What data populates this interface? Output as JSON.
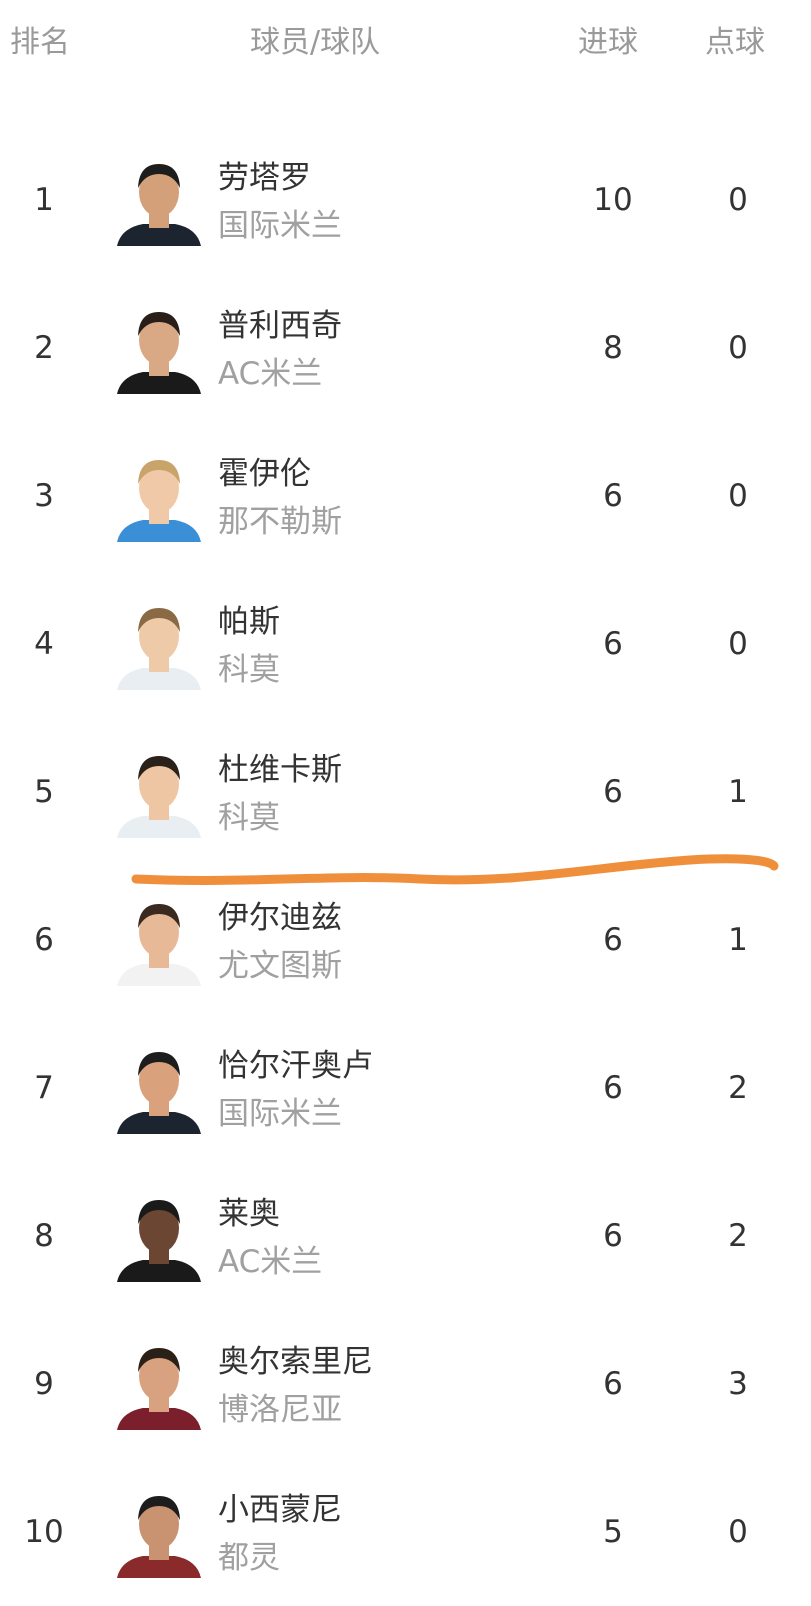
{
  "header": {
    "rank": "排名",
    "player_team": "球员/球队",
    "goals": "进球",
    "penalties": "点球"
  },
  "rows": [
    {
      "rank": "1",
      "name": "劳塔罗",
      "team": "国际米兰",
      "goals": "10",
      "penalties": "0"
    },
    {
      "rank": "2",
      "name": "普利西奇",
      "team": "AC米兰",
      "goals": "8",
      "penalties": "0"
    },
    {
      "rank": "3",
      "name": "霍伊伦",
      "team": "那不勒斯",
      "goals": "6",
      "penalties": "0"
    },
    {
      "rank": "4",
      "name": "帕斯",
      "team": "科莫",
      "goals": "6",
      "penalties": "0"
    },
    {
      "rank": "5",
      "name": "杜维卡斯",
      "team": "科莫",
      "goals": "6",
      "penalties": "1"
    },
    {
      "rank": "6",
      "name": "伊尔迪兹",
      "team": "尤文图斯",
      "goals": "6",
      "penalties": "1"
    },
    {
      "rank": "7",
      "name": "恰尔汗奥卢",
      "team": "国际米兰",
      "goals": "6",
      "penalties": "2"
    },
    {
      "rank": "8",
      "name": "莱奥",
      "team": "AC米兰",
      "goals": "6",
      "penalties": "2"
    },
    {
      "rank": "9",
      "name": "奥尔索里尼",
      "team": "博洛尼亚",
      "goals": "6",
      "penalties": "3"
    },
    {
      "rank": "10",
      "name": "小西蒙尼",
      "team": "都灵",
      "goals": "5",
      "penalties": "0"
    }
  ],
  "annotation": {
    "color": "#ef8f3c"
  },
  "colors": {
    "text": "#333333",
    "muted": "#a0a0a0"
  }
}
